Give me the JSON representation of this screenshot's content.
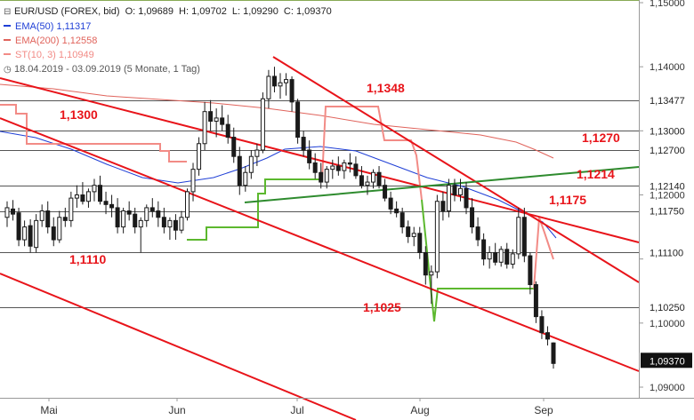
{
  "legend": {
    "symbol": "EUR/USD (FOREX, bid)",
    "ohlc": [
      {
        "label": "O:",
        "value": "1,09689"
      },
      {
        "label": "H:",
        "value": "1,09702"
      },
      {
        "label": "L:",
        "value": "1,09290"
      },
      {
        "label": "C:",
        "value": "1,09370"
      }
    ],
    "indicators": [
      {
        "name": "EMA(50)",
        "value": "1,11317",
        "color": "#1f3fd6"
      },
      {
        "name": "EMA(200)",
        "value": "1,12558",
        "color": "#e0635b"
      },
      {
        "name": "ST(10, 3)",
        "value": "1,10949",
        "color": "#f28b86"
      }
    ],
    "range": "18.04.2019 - 03.09.2019",
    "period": "(5 Monate, 1 Tag)"
  },
  "chart_data": {
    "type": "candlestick",
    "x_labels": [
      "Mai",
      "Jun",
      "Jul",
      "Aug",
      "Sep"
    ],
    "y_ticks": [
      "1,15000",
      "1,14000",
      "1,13000",
      "1,12000",
      "1,11000",
      "1,10000",
      "1,09000"
    ],
    "ylim": [
      1.0885,
      1.15
    ],
    "grid": false,
    "colors": {
      "candle": "#1a1a1a",
      "trend": "#e8141a",
      "support": "#53a52a",
      "ema50": "#1f3fd6",
      "ema200": "#e0635b",
      "supertrend_bear": "#f28b86",
      "supertrend_bull": "#5cb82e",
      "level": "#555555"
    },
    "levels": [
      {
        "value": "1,13477",
        "price": 1.13477
      },
      {
        "value": "1,13000",
        "price": 1.13
      },
      {
        "value": "1,12700",
        "price": 1.127
      },
      {
        "value": "1,12140",
        "price": 1.1214
      },
      {
        "value": "1,11750",
        "price": 1.1175
      },
      {
        "value": "1,11100",
        "price": 1.111
      },
      {
        "value": "1,10250",
        "price": 1.1025
      }
    ],
    "annotations": [
      {
        "text": "1,1348",
        "price": 1.1348
      },
      {
        "text": "1,1300",
        "price": 1.13
      },
      {
        "text": "1,1270",
        "price": 1.127
      },
      {
        "text": "1,1214",
        "price": 1.1214
      },
      {
        "text": "1,1175",
        "price": 1.1175
      },
      {
        "text": "1,1110",
        "price": 1.111
      },
      {
        "text": "1,1025",
        "price": 1.1025
      }
    ],
    "current_price": {
      "value": "1,09370",
      "price": 1.0937
    },
    "candles": [
      [
        1.1165,
        1.119,
        1.115,
        1.118
      ],
      [
        1.1178,
        1.1192,
        1.116,
        1.117
      ],
      [
        1.1172,
        1.118,
        1.112,
        1.113
      ],
      [
        1.113,
        1.116,
        1.112,
        1.115
      ],
      [
        1.1152,
        1.1162,
        1.111,
        1.112
      ],
      [
        1.1118,
        1.117,
        1.111,
        1.116
      ],
      [
        1.116,
        1.1185,
        1.115,
        1.1175
      ],
      [
        1.1175,
        1.119,
        1.114,
        1.115
      ],
      [
        1.115,
        1.1165,
        1.112,
        1.113
      ],
      [
        1.113,
        1.1175,
        1.1125,
        1.1165
      ],
      [
        1.1165,
        1.118,
        1.115,
        1.116
      ],
      [
        1.116,
        1.1205,
        1.115,
        1.1195
      ],
      [
        1.1195,
        1.1215,
        1.118,
        1.12
      ],
      [
        1.12,
        1.122,
        1.1185,
        1.119
      ],
      [
        1.119,
        1.121,
        1.118,
        1.1205
      ],
      [
        1.1205,
        1.1225,
        1.119,
        1.1215
      ],
      [
        1.1215,
        1.123,
        1.1185,
        1.119
      ],
      [
        1.119,
        1.1205,
        1.117,
        1.1185
      ],
      [
        1.1185,
        1.12,
        1.1165,
        1.118
      ],
      [
        1.118,
        1.1195,
        1.114,
        1.115
      ],
      [
        1.115,
        1.118,
        1.114,
        1.1175
      ],
      [
        1.1175,
        1.119,
        1.116,
        1.117
      ],
      [
        1.117,
        1.118,
        1.114,
        1.115
      ],
      [
        1.115,
        1.1165,
        1.111,
        1.116
      ],
      [
        1.116,
        1.1185,
        1.115,
        1.118
      ],
      [
        1.118,
        1.1195,
        1.1165,
        1.1175
      ],
      [
        1.1175,
        1.119,
        1.115,
        1.1165
      ],
      [
        1.1165,
        1.118,
        1.114,
        1.115
      ],
      [
        1.115,
        1.1165,
        1.113,
        1.116
      ],
      [
        1.116,
        1.117,
        1.113,
        1.1145
      ],
      [
        1.1145,
        1.1175,
        1.114,
        1.1165
      ],
      [
        1.1165,
        1.121,
        1.116,
        1.1205
      ],
      [
        1.1205,
        1.125,
        1.119,
        1.124
      ],
      [
        1.124,
        1.129,
        1.123,
        1.128
      ],
      [
        1.128,
        1.1345,
        1.127,
        1.133
      ],
      [
        1.133,
        1.1348,
        1.13,
        1.1315
      ],
      [
        1.1315,
        1.1335,
        1.129,
        1.132
      ],
      [
        1.132,
        1.134,
        1.13,
        1.131
      ],
      [
        1.131,
        1.1325,
        1.128,
        1.129
      ],
      [
        1.129,
        1.1305,
        1.125,
        1.126
      ],
      [
        1.126,
        1.1275,
        1.12,
        1.1215
      ],
      [
        1.1215,
        1.1245,
        1.1205,
        1.1235
      ],
      [
        1.1235,
        1.127,
        1.1225,
        1.126
      ],
      [
        1.126,
        1.128,
        1.1245,
        1.127
      ],
      [
        1.127,
        1.136,
        1.1265,
        1.135
      ],
      [
        1.135,
        1.1395,
        1.1335,
        1.1385
      ],
      [
        1.1385,
        1.14,
        1.136,
        1.137
      ],
      [
        1.137,
        1.139,
        1.135,
        1.1375
      ],
      [
        1.1375,
        1.139,
        1.1355,
        1.138
      ],
      [
        1.138,
        1.1385,
        1.133,
        1.1345
      ],
      [
        1.1345,
        1.135,
        1.128,
        1.129
      ],
      [
        1.129,
        1.13,
        1.126,
        1.127
      ],
      [
        1.127,
        1.1285,
        1.124,
        1.125
      ],
      [
        1.125,
        1.1265,
        1.1225,
        1.1235
      ],
      [
        1.1235,
        1.125,
        1.121,
        1.122
      ],
      [
        1.122,
        1.1245,
        1.121,
        1.124
      ],
      [
        1.124,
        1.1255,
        1.1225,
        1.1245
      ],
      [
        1.1245,
        1.126,
        1.123,
        1.1238
      ],
      [
        1.1238,
        1.1255,
        1.1225,
        1.125
      ],
      [
        1.125,
        1.1265,
        1.1235,
        1.1248
      ],
      [
        1.1248,
        1.126,
        1.1225,
        1.123
      ],
      [
        1.123,
        1.1245,
        1.121,
        1.1215
      ],
      [
        1.1215,
        1.123,
        1.12,
        1.122
      ],
      [
        1.122,
        1.124,
        1.121,
        1.1235
      ],
      [
        1.1235,
        1.1245,
        1.121,
        1.1215
      ],
      [
        1.1215,
        1.1225,
        1.119,
        1.1195
      ],
      [
        1.1195,
        1.1205,
        1.117,
        1.1178
      ],
      [
        1.1178,
        1.119,
        1.1165,
        1.1172
      ],
      [
        1.1172,
        1.118,
        1.114,
        1.115
      ],
      [
        1.115,
        1.116,
        1.1125,
        1.1135
      ],
      [
        1.1135,
        1.115,
        1.112,
        1.114
      ],
      [
        1.114,
        1.115,
        1.11,
        1.111
      ],
      [
        1.111,
        1.112,
        1.106,
        1.1075
      ],
      [
        1.1075,
        1.109,
        1.103,
        1.108
      ],
      [
        1.108,
        1.12,
        1.107,
        1.119
      ],
      [
        1.119,
        1.1205,
        1.116,
        1.1175
      ],
      [
        1.1175,
        1.1225,
        1.1165,
        1.1215
      ],
      [
        1.1215,
        1.1225,
        1.119,
        1.12
      ],
      [
        1.12,
        1.1225,
        1.119,
        1.121
      ],
      [
        1.121,
        1.122,
        1.117,
        1.118
      ],
      [
        1.118,
        1.1195,
        1.114,
        1.115
      ],
      [
        1.115,
        1.1165,
        1.112,
        1.113
      ],
      [
        1.113,
        1.114,
        1.109,
        1.11
      ],
      [
        1.11,
        1.112,
        1.1085,
        1.111
      ],
      [
        1.111,
        1.1125,
        1.109,
        1.1095
      ],
      [
        1.1095,
        1.112,
        1.1088,
        1.1115
      ],
      [
        1.1115,
        1.1125,
        1.1085,
        1.1092
      ],
      [
        1.1092,
        1.1115,
        1.1085,
        1.1108
      ],
      [
        1.1108,
        1.118,
        1.11,
        1.1165
      ],
      [
        1.1165,
        1.118,
        1.1095,
        1.1105
      ],
      [
        1.1105,
        1.111,
        1.1045,
        1.106
      ],
      [
        1.106,
        1.1065,
        1.1,
        1.101
      ],
      [
        1.101,
        1.102,
        1.0975,
        1.0985
      ],
      [
        1.0985,
        1.0995,
        1.0965,
        1.0975
      ],
      [
        1.0969,
        1.097,
        1.0929,
        1.0937
      ]
    ]
  }
}
